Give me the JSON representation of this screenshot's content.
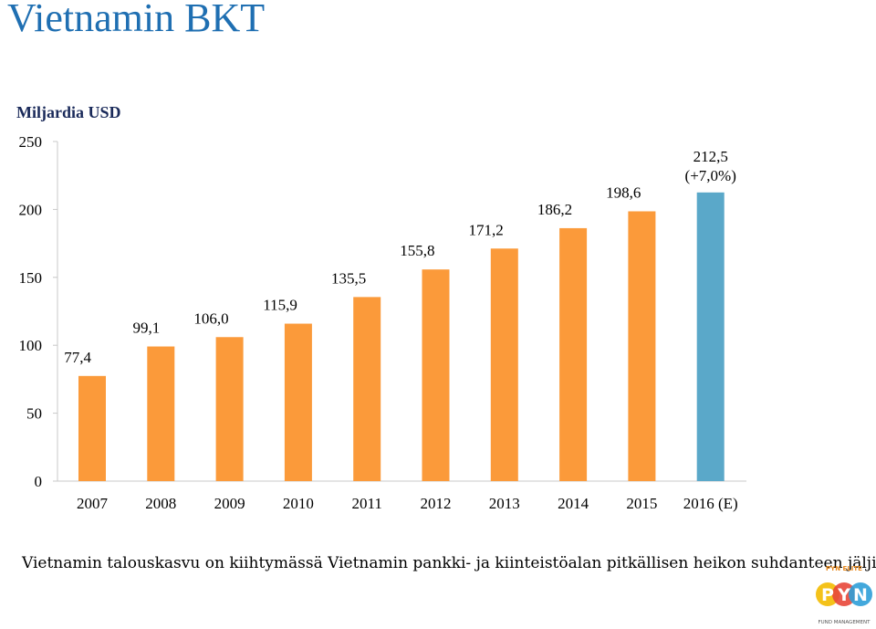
{
  "title": "Vietnamin BKT",
  "unit_label": "Miljardia USD",
  "caption": "Vietnamin talouskasvu on kiihtymässä Vietnamin pankki- ja kiinteistöalan pitkällisen heikon suhdanteen jäljiltä.",
  "colors": {
    "title": "#1f6fb2",
    "actual": "#fb9a3a",
    "estimate": "#5aa8c9"
  },
  "logo": {
    "top_text": "PYN ELITE",
    "letters": [
      "P",
      "Y",
      "N"
    ],
    "bottom_text": "FUND MANAGEMENT"
  },
  "chart_data": {
    "type": "bar",
    "categories": [
      "2007",
      "2008",
      "2009",
      "2010",
      "2011",
      "2012",
      "2013",
      "2014",
      "2015",
      "2016 (E)"
    ],
    "values": [
      77.4,
      99.1,
      106.0,
      115.9,
      135.5,
      155.8,
      171.2,
      186.2,
      198.6,
      212.5
    ],
    "data_labels": [
      "77,4",
      "99,1",
      "106,0",
      "115,9",
      "135,5",
      "155,8",
      "171,2",
      "186,2",
      "198,6",
      "212,5"
    ],
    "extra_label": {
      "index": 9,
      "text": "(+7,0%)"
    },
    "estimate_index": 9,
    "ylim": [
      0,
      250
    ],
    "yticks": [
      0,
      50,
      100,
      150,
      200,
      250
    ],
    "ylabel": "Miljardia USD",
    "grid": false,
    "legend": "none"
  }
}
